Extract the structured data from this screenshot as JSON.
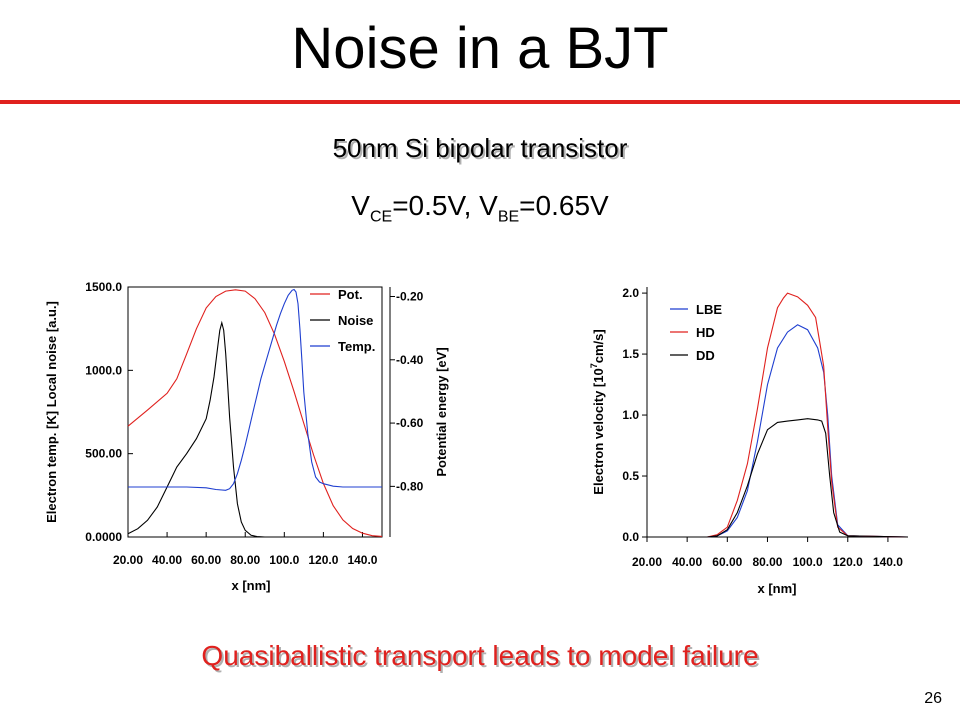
{
  "slide": {
    "title": "Noise in a BJT",
    "subtitle": "50nm Si bipolar transistor",
    "bias": {
      "v1": "V",
      "sub1": "CE",
      "val1": "=0.5V, V",
      "sub2": "BE",
      "val2": "=0.65V"
    },
    "conclusion": "Quasiballistic transport leads to model failure",
    "page_number": "26"
  },
  "colors": {
    "red": "#e0211e",
    "blue": "#1f3fd0",
    "black": "#000000"
  },
  "chart_data": [
    {
      "type": "line",
      "xlabel": "x  [nm]",
      "ylabel": "Electron temp.  [K]  Local noise  [a.u.]",
      "y2label": "Potential energy  [eV]",
      "xlim": [
        20,
        150
      ],
      "ylim": [
        0,
        1500
      ],
      "y2lim": [
        -0.96,
        -0.17
      ],
      "x_ticks": [
        "20.00",
        "40.00",
        "60.00",
        "80.00",
        "100.0",
        "120.0",
        "140.0"
      ],
      "x_tick_values": [
        20,
        40,
        60,
        80,
        100,
        120,
        140
      ],
      "y_ticks": [
        "0.0000",
        "500.00",
        "1000.0",
        "1500.0"
      ],
      "y_tick_values": [
        0,
        500,
        1000,
        1500
      ],
      "y2_ticks": [
        "-0.20",
        "-0.40",
        "-0.60",
        "-0.80"
      ],
      "y2_tick_values": [
        -0.2,
        -0.4,
        -0.6,
        -0.8
      ],
      "legend_position": "top-right",
      "series": [
        {
          "name": "Pot.",
          "color": "#e0211e",
          "axis": "y2",
          "x": [
            20,
            30,
            40,
            45,
            50,
            55,
            60,
            65,
            70,
            75,
            80,
            85,
            90,
            95,
            100,
            105,
            110,
            115,
            120,
            125,
            130,
            135,
            140,
            145,
            150
          ],
          "y": [
            -0.61,
            -0.559,
            -0.506,
            -0.46,
            -0.382,
            -0.302,
            -0.236,
            -0.2,
            -0.183,
            -0.179,
            -0.183,
            -0.207,
            -0.251,
            -0.319,
            -0.405,
            -0.501,
            -0.601,
            -0.701,
            -0.791,
            -0.861,
            -0.906,
            -0.933,
            -0.948,
            -0.956,
            -0.958
          ]
        },
        {
          "name": "Noise",
          "color": "#000000",
          "axis": "y",
          "x": [
            20,
            25,
            30,
            35,
            40,
            45,
            50,
            55,
            60,
            62,
            64,
            66,
            67,
            68,
            69,
            70,
            71,
            72,
            74,
            76,
            78,
            80,
            83,
            86,
            90,
            95,
            100
          ],
          "y": [
            20,
            50,
            100,
            180,
            300,
            420,
            500,
            590,
            710,
            820,
            960,
            1150,
            1240,
            1285,
            1240,
            1100,
            920,
            720,
            420,
            200,
            90,
            40,
            10,
            3,
            0,
            0,
            0
          ]
        },
        {
          "name": "Temp.",
          "color": "#1f3fd0",
          "axis": "y",
          "x": [
            20,
            40,
            50,
            60,
            65,
            70,
            72,
            74,
            76,
            78,
            80,
            82,
            84,
            86,
            88,
            90,
            92,
            94,
            96,
            98,
            100,
            102,
            104,
            105,
            106,
            107,
            108,
            109,
            110,
            112,
            114,
            116,
            118,
            120,
            125,
            130,
            140,
            150
          ],
          "y": [
            300,
            300,
            300,
            295,
            285,
            280,
            290,
            320,
            380,
            460,
            550,
            650,
            750,
            850,
            950,
            1030,
            1110,
            1190,
            1270,
            1340,
            1400,
            1450,
            1480,
            1485,
            1470,
            1400,
            1250,
            1060,
            870,
            620,
            450,
            360,
            330,
            320,
            305,
            300,
            300,
            300
          ]
        }
      ]
    },
    {
      "type": "line",
      "xlabel": "x  [nm]",
      "ylabel": "Electron velocity [10^7cm/s]",
      "ylabel_main": "Electron velocity [10",
      "ylabel_sup": "7",
      "ylabel_tail": "cm/s]",
      "xlim": [
        20,
        150
      ],
      "ylim": [
        0,
        2.05
      ],
      "x_ticks": [
        "20.00",
        "40.00",
        "60.00",
        "80.00",
        "100.0",
        "120.0",
        "140.0"
      ],
      "x_tick_values": [
        20,
        40,
        60,
        80,
        100,
        120,
        140
      ],
      "y_ticks": [
        "0.0",
        "0.5",
        "1.0",
        "1.5",
        "2.0"
      ],
      "y_tick_values": [
        0,
        0.5,
        1.0,
        1.5,
        2.0
      ],
      "legend_position": "top-left",
      "series": [
        {
          "name": "LBE",
          "color": "#1f3fd0",
          "x": [
            20,
            50,
            55,
            60,
            65,
            70,
            75,
            80,
            85,
            90,
            95,
            100,
            105,
            108,
            110,
            112,
            115,
            120,
            150
          ],
          "y": [
            0,
            0,
            0.01,
            0.05,
            0.16,
            0.38,
            0.78,
            1.25,
            1.55,
            1.68,
            1.74,
            1.7,
            1.55,
            1.35,
            1.0,
            0.5,
            0.1,
            0.01,
            0
          ]
        },
        {
          "name": "HD",
          "color": "#e0211e",
          "x": [
            20,
            50,
            55,
            60,
            65,
            70,
            75,
            80,
            85,
            88,
            90,
            95,
            100,
            104,
            106,
            108,
            110,
            112,
            115,
            120,
            150
          ],
          "y": [
            0,
            0,
            0.02,
            0.08,
            0.3,
            0.6,
            1.05,
            1.55,
            1.88,
            1.96,
            2.0,
            1.97,
            1.9,
            1.8,
            1.6,
            1.4,
            0.9,
            0.45,
            0.08,
            0.01,
            0
          ]
        },
        {
          "name": "DD",
          "color": "#000000",
          "x": [
            20,
            50,
            55,
            60,
            65,
            70,
            75,
            80,
            85,
            90,
            95,
            100,
            105,
            107,
            109,
            111,
            113,
            116,
            120,
            150
          ],
          "y": [
            0,
            0,
            0.01,
            0.06,
            0.2,
            0.42,
            0.68,
            0.88,
            0.94,
            0.95,
            0.96,
            0.97,
            0.96,
            0.95,
            0.85,
            0.5,
            0.2,
            0.04,
            0.01,
            0
          ]
        }
      ]
    }
  ]
}
